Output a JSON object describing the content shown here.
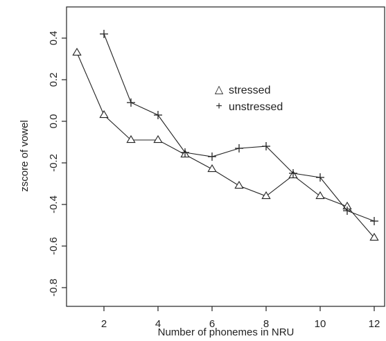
{
  "chart_data": {
    "type": "line",
    "title": "",
    "xlabel": "Number of phonemes in NRU",
    "ylabel": "zscore of vowel",
    "xlim": [
      0.5,
      12.5
    ],
    "ylim": [
      -0.8,
      0.45
    ],
    "x_ticks": [
      2,
      4,
      6,
      8,
      10,
      12
    ],
    "y_ticks": [
      -0.8,
      -0.6,
      -0.4,
      -0.2,
      0.0,
      0.2,
      0.4
    ],
    "y_tick_labels": [
      "-0.8",
      "-0.6",
      "-0.4",
      "-0.2",
      "0.0",
      "0.2",
      "0.4"
    ],
    "grid": false,
    "legend_position": "upper-right-center",
    "series": [
      {
        "name": "stressed",
        "marker": "triangle",
        "x": [
          1,
          2,
          3,
          4,
          5,
          6,
          7,
          8,
          9,
          10,
          11,
          12
        ],
        "y": [
          0.33,
          0.03,
          -0.09,
          -0.09,
          -0.16,
          -0.23,
          -0.31,
          -0.36,
          -0.26,
          -0.36,
          -0.41,
          -0.56
        ]
      },
      {
        "name": "unstressed",
        "marker": "plus",
        "x": [
          2,
          3,
          4,
          5,
          6,
          7,
          8,
          9,
          10,
          11,
          12
        ],
        "y": [
          0.42,
          0.09,
          0.03,
          -0.15,
          -0.17,
          -0.13,
          -0.12,
          -0.25,
          -0.27,
          -0.43,
          -0.48
        ]
      }
    ],
    "legend_symbols": {
      "stressed": "△",
      "unstressed": "+"
    }
  }
}
